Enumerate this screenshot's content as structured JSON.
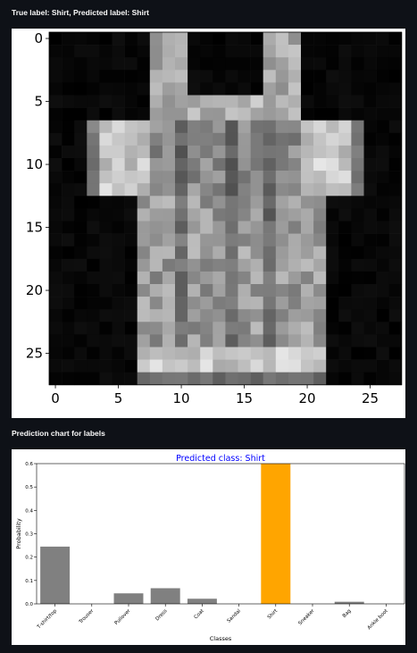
{
  "captions": {
    "true_predicted": "True label: Shirt, Predicted label: Shirt",
    "chart": "Prediction chart for labels"
  },
  "image_plot": {
    "x_ticks": [
      "0",
      "5",
      "10",
      "15",
      "20",
      "25"
    ],
    "y_ticks": [
      "0",
      "5",
      "10",
      "15",
      "20",
      "25"
    ],
    "colormap": "gray",
    "grid_size": 28
  },
  "chart_data": {
    "type": "bar",
    "title": "Predicted class: Shirt",
    "title_color": "#0000ff",
    "xlabel": "Classes",
    "ylabel": "Probability",
    "categories": [
      "T-shirt/top",
      "Trouser",
      "Pullover",
      "Dress",
      "Coat",
      "Sandal",
      "Shirt",
      "Sneaker",
      "Bag",
      "Ankle boot"
    ],
    "values": [
      0.245,
      0.0,
      0.045,
      0.067,
      0.022,
      0.0,
      0.64,
      0.0,
      0.009,
      0.0
    ],
    "highlight_index": 6,
    "bar_color": "#808080",
    "highlight_color": "#ffa500",
    "ylim": [
      0,
      0.6
    ],
    "y_ticks": [
      "0.0",
      "0.1",
      "0.2",
      "0.3",
      "0.4",
      "0.5",
      "0.6"
    ],
    "grid": false
  }
}
